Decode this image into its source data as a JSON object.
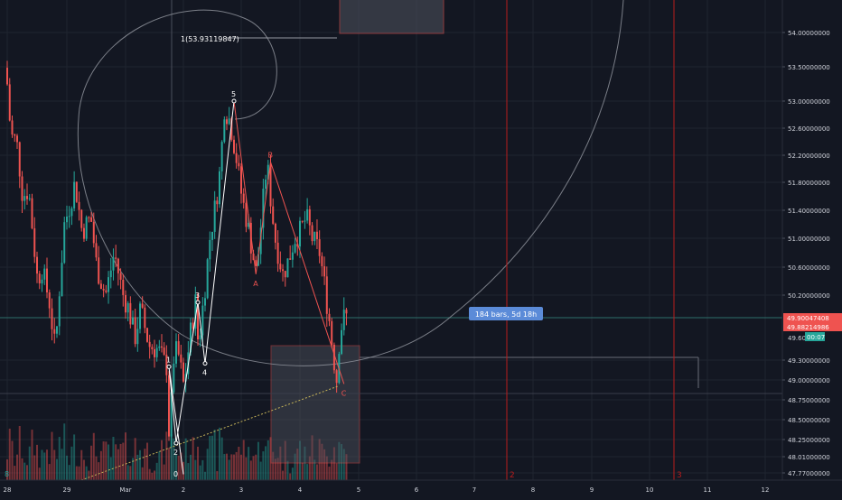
{
  "colors": {
    "background": "#131722",
    "grid": "#1f2430",
    "bull": "#26a69a",
    "bear": "#ef5350",
    "axis_text": "#d1d4dc",
    "price_line": "#2e6f6a",
    "wave_line": "#ffffff",
    "abc_line": "#ef5350",
    "fib_circle": "#9598a1",
    "time_cycle": "#b71c1c",
    "box_fill": "#50535e",
    "date_range_label": "#5b8bd8",
    "trend_dotted": "#c5b358"
  },
  "chart_data": {
    "type": "candlestick",
    "x_axis": {
      "ticks": [
        "28",
        "29",
        "Mar",
        "2",
        "3",
        "4",
        "5",
        "6",
        "7",
        "8",
        "9",
        "10",
        "11",
        "12"
      ],
      "left_edge_label": "8"
    },
    "y_axis": {
      "ylim": [
        47.68,
        54.35
      ],
      "ticks": [
        {
          "value": 54.0,
          "label": "54.00000000"
        },
        {
          "value": 53.5,
          "label": "53.50000000"
        },
        {
          "value": 53.0,
          "label": "53.00000000"
        },
        {
          "value": 52.6,
          "label": "52.60000000"
        },
        {
          "value": 52.2,
          "label": "52.20000000"
        },
        {
          "value": 51.8,
          "label": "51.80000000"
        },
        {
          "value": 51.4,
          "label": "51.40000000"
        },
        {
          "value": 51.0,
          "label": "51.00000000"
        },
        {
          "value": 50.6,
          "label": "50.60000000"
        },
        {
          "value": 50.2,
          "label": "50.20000000"
        },
        {
          "value": 49.3,
          "label": "49.30000000"
        },
        {
          "value": 49.0,
          "label": "49.00000000"
        },
        {
          "value": 48.75,
          "label": "48.75000000"
        },
        {
          "value": 48.5,
          "label": "48.50000000"
        },
        {
          "value": 48.25,
          "label": "48.25000000"
        },
        {
          "value": 48.01,
          "label": "48.01000000"
        },
        {
          "value": 47.77,
          "label": "47.77000000"
        }
      ]
    },
    "price_badges": [
      {
        "label": "49.90047408",
        "color": "#ef5350"
      },
      {
        "label": "49.88214986",
        "color": "#ef5350"
      },
      {
        "label": "49.600",
        "color": ""
      },
      {
        "label": "00:07",
        "color": "#26a69a"
      }
    ],
    "current_price": 49.9,
    "wave_labels_impulse": [
      {
        "label": "0",
        "x": "2 00:00",
        "y": 47.75
      },
      {
        "label": "1",
        "x": "1 18:00",
        "y": 49.2
      },
      {
        "label": "2",
        "x": "1 21:00",
        "y": 48.2
      },
      {
        "label": "3",
        "x": "2 06:00",
        "y": 50.1
      },
      {
        "label": "4",
        "x": "2 09:00",
        "y": 49.25
      },
      {
        "label": "5",
        "x": "2 21:00",
        "y": 53.0
      }
    ],
    "wave_labels_corrective": [
      {
        "label": "A",
        "x": "3 06:00",
        "y": 50.5
      },
      {
        "label": "B",
        "x": "3 12:00",
        "y": 52.1
      },
      {
        "label": "C",
        "x": "4 18:00",
        "y": 48.95
      }
    ],
    "time_cycle_labels": [
      "2",
      "3"
    ],
    "fib_label": "1(53.93119847)",
    "date_range_label": "184 bars, 5d 18h"
  }
}
